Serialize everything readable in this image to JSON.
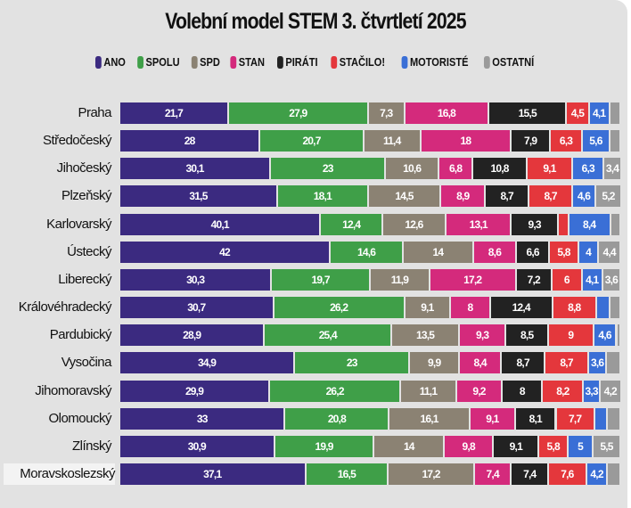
{
  "chart_data": {
    "type": "bar",
    "orientation": "horizontal",
    "stacked": true,
    "title": "Volební model STEM 3. čtvrtletí 2025",
    "legend_position": "top",
    "grid": false,
    "xlim": [
      0,
      100
    ],
    "series": [
      {
        "name": "ANO",
        "color": "#3b2a80"
      },
      {
        "name": "SPOLU",
        "color": "#3f9f48"
      },
      {
        "name": "SPD",
        "color": "#8b8273"
      },
      {
        "name": "STAN",
        "color": "#d42a7c"
      },
      {
        "name": "PIRÁTI",
        "color": "#222222"
      },
      {
        "name": "STAČILO!",
        "color": "#e4373c"
      },
      {
        "name": "MOTORISTÉ",
        "color": "#3a6fd6"
      },
      {
        "name": "OSTATNÍ",
        "color": "#9a9a9a"
      }
    ],
    "categories": [
      "Praha",
      "Středočeský",
      "Jihočeský",
      "Plzeňský",
      "Karlovarský",
      "Ústecký",
      "Liberecký",
      "Královéhradecký",
      "Pardubický",
      "Vysočina",
      "Jihomoravský",
      "Olomoucký",
      "Zlínský",
      "Moravskoslezský"
    ],
    "values": [
      [
        21.7,
        27.9,
        7.3,
        16.8,
        15.5,
        4.5,
        4.1,
        2.2
      ],
      [
        28,
        20.7,
        11.4,
        18,
        7.9,
        6.3,
        5.6,
        2.1
      ],
      [
        30.1,
        23,
        10.6,
        6.8,
        10.8,
        9.1,
        6.3,
        3.4
      ],
      [
        31.5,
        18.1,
        14.5,
        8.9,
        8.7,
        8.7,
        4.6,
        5.2
      ],
      [
        40.1,
        12.4,
        12.6,
        13.1,
        9.3,
        2.1,
        8.4,
        2.0
      ],
      [
        42,
        14.6,
        14,
        8.6,
        6.6,
        5.8,
        4,
        4.4
      ],
      [
        30.3,
        19.7,
        11.9,
        17.2,
        7.2,
        6,
        4.1,
        3.6
      ],
      [
        30.7,
        26.2,
        9.1,
        8,
        12.4,
        8.8,
        2.7,
        2.1
      ],
      [
        28.9,
        25.4,
        13.5,
        9.3,
        8.5,
        9,
        4.6,
        0.8
      ],
      [
        34.9,
        23,
        9.9,
        8.4,
        8.7,
        8.7,
        3.6,
        2.8
      ],
      [
        29.9,
        26.2,
        11.1,
        9.2,
        8,
        8.2,
        3.3,
        4.2
      ],
      [
        33,
        20.8,
        16.1,
        9.1,
        8.1,
        7.7,
        2.6,
        2.6
      ],
      [
        30.9,
        19.9,
        14,
        9.8,
        9.1,
        5.8,
        5,
        5.5
      ],
      [
        37.1,
        16.5,
        17.2,
        7.4,
        7.4,
        7.6,
        4.2,
        2.6
      ]
    ],
    "data_labels": [
      [
        "21,7",
        "27,9",
        "7,3",
        "16,8",
        "15,5",
        "4,5",
        "4,1",
        ""
      ],
      [
        "28",
        "20,7",
        "11,4",
        "18",
        "7,9",
        "6,3",
        "5,6",
        ""
      ],
      [
        "30,1",
        "23",
        "10,6",
        "6,8",
        "10,8",
        "9,1",
        "6,3",
        "3,4"
      ],
      [
        "31,5",
        "18,1",
        "14,5",
        "8,9",
        "8,7",
        "8,7",
        "4,6",
        "5,2"
      ],
      [
        "40,1",
        "12,4",
        "12,6",
        "13,1",
        "9,3",
        "",
        "8,4",
        ""
      ],
      [
        "42",
        "14,6",
        "14",
        "8,6",
        "6,6",
        "5,8",
        "4",
        "4,4"
      ],
      [
        "30,3",
        "19,7",
        "11,9",
        "17,2",
        "7,2",
        "6",
        "4,1",
        "3,6"
      ],
      [
        "30,7",
        "26,2",
        "9,1",
        "8",
        "12,4",
        "8,8",
        "",
        ""
      ],
      [
        "28,9",
        "25,4",
        "13,5",
        "9,3",
        "8,5",
        "9",
        "4,6",
        ""
      ],
      [
        "34,9",
        "23",
        "9,9",
        "8,4",
        "8,7",
        "8,7",
        "3,6",
        ""
      ],
      [
        "29,9",
        "26,2",
        "11,1",
        "9,2",
        "8",
        "8,2",
        "3,3",
        "4,2"
      ],
      [
        "33",
        "20,8",
        "16,1",
        "9,1",
        "8,1",
        "7,7",
        "",
        ""
      ],
      [
        "30,9",
        "19,9",
        "14",
        "9,8",
        "9,1",
        "5,8",
        "5",
        "5,5"
      ],
      [
        "37,1",
        "16,5",
        "17,2",
        "7,4",
        "7,4",
        "7,6",
        "4,2",
        ""
      ]
    ]
  }
}
